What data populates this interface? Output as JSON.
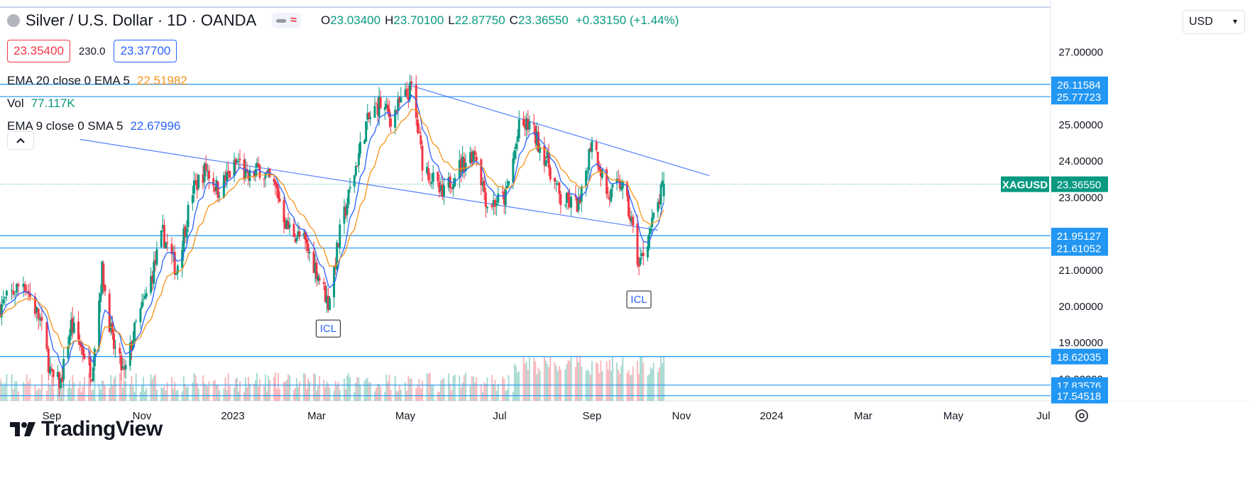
{
  "header": {
    "title": "Silver / U.S. Dollar · 1D · OANDA",
    "ohlc": {
      "open_label": "O",
      "open": "23.03400",
      "high_label": "H",
      "high": "23.70100",
      "low_label": "L",
      "low": "22.87750",
      "close_label": "C",
      "close": "23.36550",
      "change": "+0.33150 (+1.44%)"
    },
    "sell_price": "23.35400",
    "spread": "230.0",
    "buy_price": "23.37700"
  },
  "indicators": {
    "ema20": {
      "label": "EMA 20 close 0 EMA 5",
      "value": "22.51982",
      "color": "#f7931a"
    },
    "vol": {
      "label": "Vol",
      "value": "77.117K",
      "color": "#089981"
    },
    "ema9": {
      "label": "EMA 9 close 0 SMA 5",
      "value": "22.67996",
      "color": "#2962ff"
    }
  },
  "currency_select": {
    "value": "USD"
  },
  "logo": {
    "text": "TradingView"
  },
  "colors": {
    "up": "#089981",
    "down": "#f23645",
    "line_blue": "#2962ff",
    "level_blue": "#2196f3",
    "ema_orange": "#f7931a",
    "axis_label_bg": "#2196f3",
    "symbol_label_bg": "#089981"
  },
  "chart_data": {
    "type": "candlestick",
    "symbol": "XAGUSD",
    "title": "Silver / U.S. Dollar · 1D · OANDA",
    "ylim": [
      17.5,
      27.9
    ],
    "price_ticks": [
      "27.00000",
      "26.00000",
      "25.00000",
      "24.00000",
      "23.00000",
      "22.00000",
      "21.00000",
      "20.00000",
      "19.00000",
      "18.00000"
    ],
    "time_labels": [
      "Sep",
      "Nov",
      "2023",
      "Mar",
      "May",
      "Jul",
      "Sep",
      "Nov",
      "2024",
      "Mar",
      "May",
      "Jul"
    ],
    "horizontal_levels": [
      26.11584,
      25.77723,
      21.95127,
      21.61052,
      18.62035,
      17.83576,
      17.54518
    ],
    "level_labels": [
      "26.11584",
      "25.77723",
      "21.95127",
      "21.61052",
      "18.62035",
      "17.83576",
      "17.54518"
    ],
    "current_price": {
      "label": "XAGUSD",
      "value": "23.36550",
      "price": 23.3655
    },
    "trendlines": [
      {
        "from": [
          "2022-09-20",
          24.6
        ],
        "to": [
          "2023-10-16",
          22.1
        ]
      },
      {
        "from": [
          "2023-05-03",
          26.1
        ],
        "to": [
          "2023-11-20",
          23.6
        ]
      }
    ],
    "annotations": [
      {
        "text": "ICL",
        "date": "2023-03-09",
        "price": 19.9
      },
      {
        "text": "ICL",
        "date": "2023-10-03",
        "price": 20.7
      }
    ],
    "price_path": [
      [
        "2022-08-01",
        20.0
      ],
      [
        "2022-08-15",
        20.7
      ],
      [
        "2022-08-25",
        19.6
      ],
      [
        "2022-09-01",
        18.0
      ],
      [
        "2022-09-07",
        17.9
      ],
      [
        "2022-09-14",
        19.5
      ],
      [
        "2022-09-23",
        18.7
      ],
      [
        "2022-09-28",
        18.2
      ],
      [
        "2022-10-05",
        21.0
      ],
      [
        "2022-10-12",
        19.0
      ],
      [
        "2022-10-20",
        18.1
      ],
      [
        "2022-10-28",
        19.5
      ],
      [
        "2022-11-04",
        20.3
      ],
      [
        "2022-11-15",
        22.0
      ],
      [
        "2022-11-24",
        21.0
      ],
      [
        "2022-12-05",
        23.2
      ],
      [
        "2022-12-14",
        23.8
      ],
      [
        "2022-12-22",
        23.2
      ],
      [
        "2023-01-05",
        24.0
      ],
      [
        "2023-01-11",
        23.5
      ],
      [
        "2023-01-20",
        23.8
      ],
      [
        "2023-02-01",
        23.2
      ],
      [
        "2023-02-08",
        22.2
      ],
      [
        "2023-02-20",
        21.8
      ],
      [
        "2023-03-01",
        21.0
      ],
      [
        "2023-03-09",
        20.1
      ],
      [
        "2023-03-17",
        22.0
      ],
      [
        "2023-03-24",
        23.2
      ],
      [
        "2023-04-04",
        25.0
      ],
      [
        "2023-04-13",
        25.6
      ],
      [
        "2023-04-21",
        25.2
      ],
      [
        "2023-05-05",
        26.0
      ],
      [
        "2023-05-12",
        24.0
      ],
      [
        "2023-05-25",
        23.0
      ],
      [
        "2023-06-02",
        23.7
      ],
      [
        "2023-06-15",
        24.3
      ],
      [
        "2023-06-23",
        22.8
      ],
      [
        "2023-07-05",
        23.0
      ],
      [
        "2023-07-14",
        24.9
      ],
      [
        "2023-07-21",
        25.0
      ],
      [
        "2023-08-02",
        24.0
      ],
      [
        "2023-08-11",
        22.9
      ],
      [
        "2023-08-24",
        22.8
      ],
      [
        "2023-09-01",
        24.7
      ],
      [
        "2023-09-12",
        23.0
      ],
      [
        "2023-09-21",
        23.4
      ],
      [
        "2023-09-28",
        22.3
      ],
      [
        "2023-10-03",
        21.1
      ],
      [
        "2023-10-10",
        22.0
      ],
      [
        "2023-10-16",
        22.8
      ],
      [
        "2023-10-20",
        23.4
      ]
    ]
  }
}
